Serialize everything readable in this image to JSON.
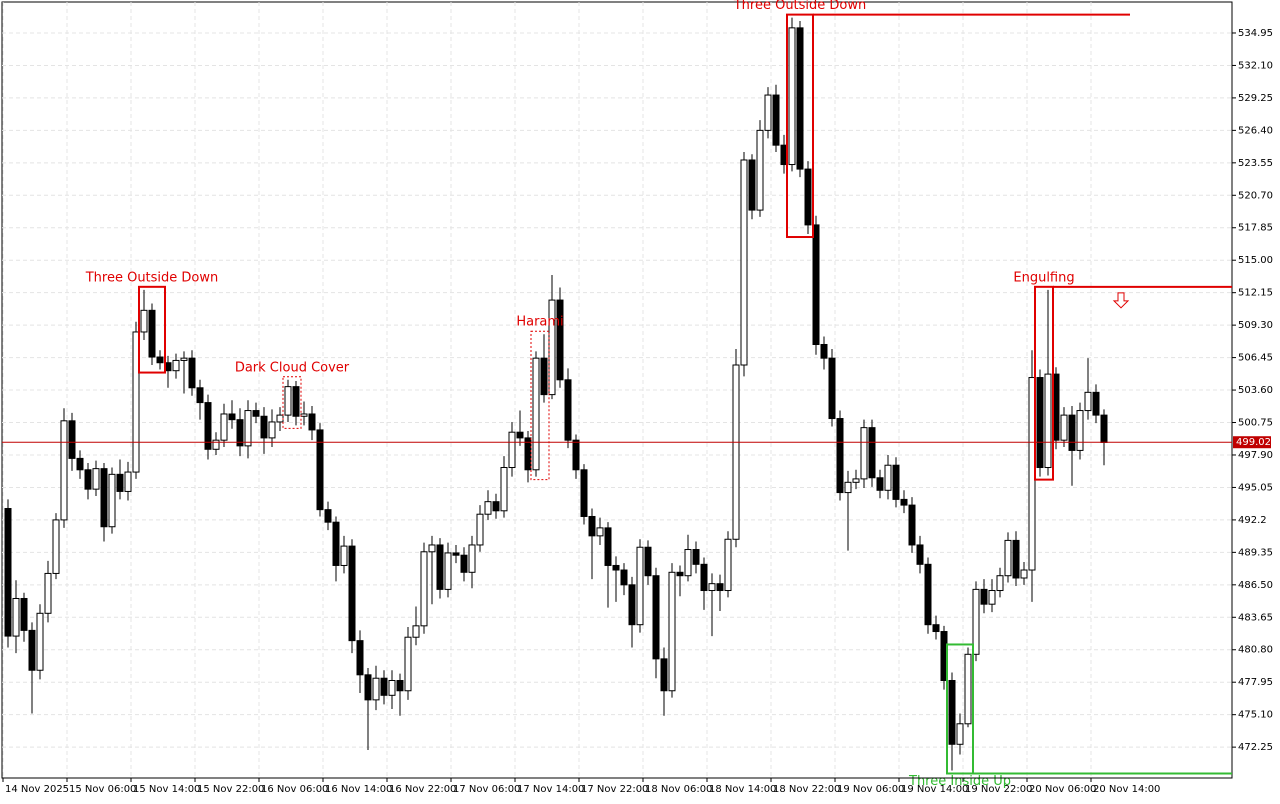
{
  "chart_data": {
    "type": "candlestick",
    "series": [
      {
        "open": [
          493.2,
          482.0,
          485.3,
          482.5,
          479.0,
          484.0,
          487.5,
          492.2,
          500.9,
          497.6,
          496.6,
          494.9,
          496.7,
          491.6,
          496.2,
          494.7,
          496.4,
          508.7,
          510.6,
          506.5,
          506.0,
          505.3,
          506.2,
          506.4,
          503.8,
          502.5,
          498.4,
          499.2,
          501.5,
          501.0,
          498.7,
          501.8,
          501.3,
          499.4,
          500.8,
          501.4,
          503.9,
          501.3,
          501.5,
          500.1,
          493.1,
          492.0,
          488.2,
          489.9,
          481.6,
          478.6,
          476.4,
          478.3,
          476.8,
          478.1,
          477.2,
          481.9,
          482.9,
          489.4,
          490.0,
          486.1,
          489.3,
          489.1,
          487.6,
          490.0,
          492.7,
          493.8,
          493.0,
          496.8,
          499.9,
          499.4,
          496.6,
          506.4,
          503.2,
          511.5,
          504.5,
          499.2,
          496.6,
          492.5,
          490.8,
          491.5,
          488.2,
          487.8,
          486.5,
          483.0,
          489.8,
          487.3,
          480.0,
          477.2,
          487.6,
          487.3,
          489.6,
          488.3,
          486.0,
          486.6,
          486.0,
          490.5,
          505.8,
          523.8,
          519.4,
          526.4,
          529.5,
          525.1,
          523.4,
          535.4,
          523.0,
          518.1,
          507.6,
          506.4,
          501.1,
          494.6,
          495.5,
          495.8,
          500.3,
          495.9,
          494.8,
          497.0,
          494.0,
          493.5,
          490.0,
          488.3,
          483.0,
          482.4,
          478.1,
          472.5,
          474.3,
          480.4,
          486.1,
          484.8,
          486.0,
          487.3,
          490.4,
          487.1,
          487.8,
          504.7,
          496.8,
          505.0,
          499.2,
          501.4,
          498.3,
          501.8,
          503.4,
          501.4
        ],
        "high": [
          494.0,
          486.9,
          485.8,
          483.2,
          484.8,
          488.6,
          492.8,
          502.0,
          501.6,
          498.3,
          497.2,
          497.4,
          497.2,
          496.8,
          497.5,
          497.3,
          509.6,
          512.4,
          511.2,
          507.1,
          506.6,
          506.8,
          507.0,
          507.1,
          504.5,
          503.2,
          499.9,
          502.4,
          502.7,
          502.0,
          502.7,
          502.5,
          502.1,
          501.9,
          502.1,
          504.5,
          504.4,
          502.6,
          502.2,
          500.7,
          493.8,
          492.5,
          490.8,
          490.5,
          482.5,
          479.2,
          479.4,
          479.0,
          479.0,
          478.7,
          482.8,
          484.6,
          490.2,
          490.8,
          490.6,
          490.2,
          490.0,
          489.8,
          490.8,
          493.5,
          494.8,
          494.5,
          497.8,
          500.8,
          501.8,
          500.0,
          507.0,
          508.5,
          513.7,
          512.6,
          505.5,
          499.7,
          497.1,
          493.2,
          492.4,
          492.0,
          489.0,
          488.4,
          487.2,
          490.5,
          490.4,
          488.0,
          481.0,
          488.4,
          488.2,
          490.9,
          490.3,
          488.9,
          487.5,
          487.4,
          491.2,
          507.2,
          524.5,
          524.3,
          527.3,
          530.2,
          530.4,
          526.0,
          536.3,
          536.0,
          523.7,
          518.9,
          508.3,
          507.2,
          501.8,
          496.5,
          496.6,
          501.0,
          501.0,
          496.6,
          497.9,
          497.7,
          494.8,
          494.2,
          490.8,
          488.9,
          483.8,
          482.9,
          478.8,
          475.2,
          481.0,
          486.8,
          487.0,
          487.0,
          488.0,
          491.1,
          491.2,
          488.5,
          507.1,
          505.4,
          512.4,
          505.6,
          502.1,
          502.2,
          502.5,
          506.4,
          504.1,
          501.9
        ],
        "low": [
          481.0,
          480.5,
          481.5,
          475.2,
          478.2,
          483.2,
          487.0,
          491.5,
          496.5,
          495.8,
          494.0,
          494.3,
          490.3,
          491.0,
          494.0,
          493.9,
          495.8,
          508.0,
          505.8,
          505.4,
          503.8,
          504.6,
          503.3,
          503.1,
          501.0,
          497.5,
          497.9,
          498.6,
          500.2,
          497.8,
          497.6,
          500.7,
          498.0,
          498.6,
          500.0,
          500.8,
          500.5,
          500.5,
          499.2,
          492.5,
          491.3,
          486.8,
          487.5,
          480.5,
          477.0,
          472.0,
          475.5,
          476.0,
          475.6,
          475.0,
          476.4,
          481.2,
          482.2,
          484.8,
          485.3,
          485.4,
          488.4,
          486.8,
          486.2,
          489.4,
          492.2,
          492.3,
          492.4,
          496.0,
          498.7,
          495.5,
          496.0,
          502.5,
          502.8,
          503.8,
          498.5,
          495.8,
          491.8,
          487.0,
          490.0,
          484.5,
          485.0,
          485.6,
          481.0,
          482.3,
          486.5,
          478.3,
          475.0,
          476.6,
          485.5,
          486.8,
          487.5,
          484.3,
          482.0,
          484.2,
          485.4,
          489.8,
          504.8,
          518.6,
          518.8,
          525.7,
          524.5,
          522.6,
          522.8,
          522.3,
          517.3,
          506.7,
          505.4,
          500.4,
          493.9,
          489.5,
          494.9,
          495.0,
          495.1,
          494.1,
          494.0,
          493.3,
          492.8,
          489.3,
          487.5,
          482.2,
          481.7,
          477.3,
          470.2,
          471.6,
          474.0,
          479.8,
          484.0,
          484.1,
          485.4,
          486.7,
          486.4,
          486.5,
          485.0,
          496.0,
          496.1,
          498.4,
          498.6,
          495.2,
          497.5,
          501.0,
          500.7,
          497.0
        ],
        "close": [
          482.0,
          485.3,
          482.5,
          479.0,
          484.0,
          487.5,
          492.2,
          500.9,
          497.6,
          496.6,
          494.9,
          496.7,
          491.6,
          496.2,
          494.7,
          496.4,
          508.7,
          510.6,
          506.5,
          506.0,
          505.3,
          506.2,
          506.4,
          503.8,
          502.5,
          498.4,
          499.2,
          501.5,
          501.0,
          498.7,
          501.8,
          501.3,
          499.4,
          500.8,
          501.4,
          503.9,
          501.3,
          501.5,
          500.1,
          493.1,
          492.0,
          488.2,
          489.9,
          481.6,
          478.6,
          476.4,
          478.3,
          476.8,
          478.1,
          477.2,
          481.9,
          482.9,
          489.4,
          490.0,
          486.1,
          489.3,
          489.1,
          487.6,
          490.0,
          492.7,
          493.8,
          493.0,
          496.8,
          499.9,
          499.4,
          496.6,
          506.4,
          503.2,
          511.5,
          504.5,
          499.2,
          496.6,
          492.5,
          490.8,
          491.5,
          488.2,
          487.8,
          486.5,
          483.0,
          489.8,
          487.3,
          480.0,
          477.2,
          487.6,
          487.3,
          489.6,
          488.3,
          486.0,
          486.6,
          486.0,
          490.5,
          505.8,
          523.8,
          519.4,
          526.4,
          529.5,
          525.1,
          523.4,
          535.4,
          523.0,
          518.1,
          507.6,
          506.4,
          501.1,
          494.6,
          495.5,
          495.8,
          500.3,
          495.9,
          494.8,
          497.0,
          494.0,
          493.5,
          490.0,
          488.3,
          483.0,
          482.4,
          478.1,
          472.5,
          474.3,
          480.4,
          486.1,
          484.8,
          486.0,
          487.3,
          490.4,
          487.1,
          487.8,
          504.7,
          496.8,
          505.0,
          499.2,
          501.4,
          498.3,
          501.8,
          503.4,
          501.4,
          499.0
        ]
      }
    ],
    "xtick_labels": [
      "14 Nov 2025",
      "15 Nov 06:00",
      "15 Nov 14:00",
      "15 Nov 22:00",
      "16 Nov 06:00",
      "16 Nov 14:00",
      "16 Nov 22:00",
      "17 Nov 06:00",
      "17 Nov 14:00",
      "17 Nov 22:00",
      "18 Nov 06:00",
      "18 Nov 14:00",
      "18 Nov 22:00",
      "19 Nov 06:00",
      "19 Nov 14:00",
      "19 Nov 22:00",
      "20 Nov 06:00",
      "20 Nov 14:00"
    ],
    "ylim": [
      469.54,
      537.67
    ],
    "yticks": [
      534.95,
      {
        "value": 532.1,
        "label": "532.10"
      },
      529.25,
      {
        "value": 526.4,
        "label": "526.40"
      },
      523.55,
      {
        "value": 520.7,
        "label": "520.70"
      },
      517.85,
      {
        "value": 515,
        "label": "515.00"
      },
      512.15,
      {
        "value": 509.3,
        "label": "509.30"
      },
      506.45,
      {
        "value": 503.6,
        "label": "503.60"
      },
      500.75,
      {
        "value": 497.9,
        "label": "497.90"
      },
      495.05,
      492.2,
      489.35,
      {
        "value": 486.5,
        "label": "486.50"
      },
      483.65,
      {
        "value": 480.8,
        "label": "480.80"
      },
      477.95,
      {
        "value": 475.1,
        "label": "475.10"
      },
      472.25
    ],
    "grid": true,
    "last_price": 499.02,
    "patterns": [
      {
        "label": "Three Outside Down",
        "color": "#e00000",
        "first": 17,
        "last": 19,
        "dashed": false,
        "label_position": "top",
        "extend": false
      },
      {
        "label": "Dark Cloud Cover",
        "color": "#e00000",
        "first": 35,
        "last": 36,
        "dashed": true,
        "label_position": "top",
        "extend": false
      },
      {
        "label": "Harami",
        "color": "#e00000",
        "first": 66,
        "last": 67,
        "dashed": true,
        "label_position": "top",
        "extend": false
      },
      {
        "label": "Three Outside Down",
        "color": "#e00000",
        "first": 98,
        "last": 100,
        "dashed": false,
        "label_position": "top",
        "extend": true
      },
      {
        "label": "Three Inside Up",
        "color": "#33bb33",
        "first": 118,
        "last": 120,
        "dashed": false,
        "label_position": "bottom",
        "extend": true
      },
      {
        "label": "Engulfing",
        "color": "#e00000",
        "first": 129,
        "last": 130,
        "dashed": false,
        "label_position": "top",
        "extend": true
      }
    ]
  }
}
